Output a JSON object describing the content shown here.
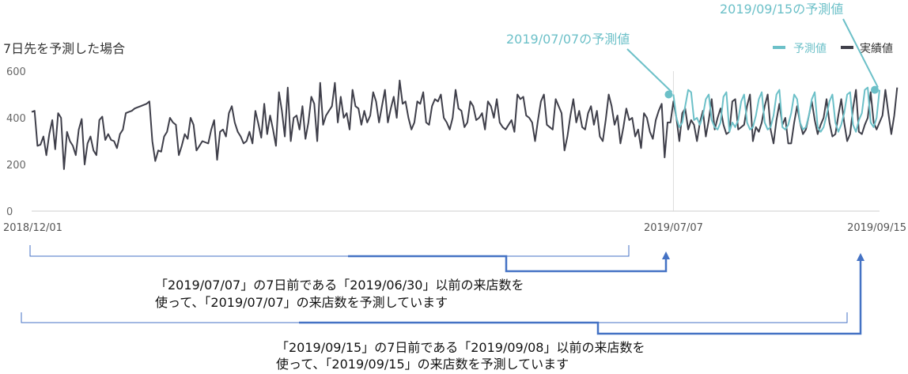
{
  "chart_data": {
    "type": "line",
    "title": "7日先を予測した場合",
    "xlabel": "",
    "ylabel": "",
    "ylim": [
      0,
      600
    ],
    "yticks": [
      "0",
      "200",
      "400",
      "600"
    ],
    "x_start": "2018/12/01",
    "x_end": "2019/09/15",
    "xticks": [
      {
        "date": "2018/12/01",
        "label": "2018/12/01"
      },
      {
        "date": "2019/07/07",
        "label": "2019/07/07"
      },
      {
        "date": "2019/09/15",
        "label": "2019/09/15"
      }
    ],
    "grid": "vertical line at 2019/07/07",
    "legend_position": "top-right",
    "series": [
      {
        "name": "実績値",
        "color": "#3f3f4a",
        "start_date": "2018/12/01",
        "values": [
          425,
          430,
          280,
          285,
          320,
          240,
          330,
          390,
          265,
          420,
          400,
          180,
          340,
          300,
          280,
          240,
          350,
          395,
          200,
          290,
          320,
          260,
          240,
          390,
          405,
          305,
          330,
          305,
          300,
          270,
          330,
          350,
          420,
          425,
          430,
          440,
          445,
          450,
          455,
          460,
          470,
          300,
          215,
          260,
          255,
          320,
          340,
          400,
          380,
          370,
          240,
          280,
          330,
          310,
          400,
          370,
          260,
          280,
          300,
          295,
          290,
          350,
          390,
          220,
          340,
          350,
          320,
          420,
          450,
          380,
          340,
          320,
          290,
          300,
          340,
          290,
          430,
          375,
          315,
          460,
          330,
          410,
          350,
          280,
          510,
          430,
          320,
          530,
          300,
          400,
          410,
          350,
          450,
          310,
          380,
          490,
          460,
          300,
          550,
          370,
          410,
          430,
          450,
          550,
          380,
          490,
          400,
          420,
          350,
          520,
          450,
          440,
          370,
          430,
          380,
          410,
          510,
          470,
          380,
          450,
          520,
          380,
          440,
          490,
          400,
          560,
          460,
          470,
          400,
          350,
          380,
          470,
          460,
          510,
          380,
          370,
          450,
          480,
          470,
          500,
          400,
          380,
          350,
          400,
          520,
          440,
          430,
          360,
          380,
          470,
          450,
          390,
          400,
          420,
          350,
          470,
          450,
          400,
          480,
          380,
          360,
          350,
          370,
          390,
          340,
          500,
          480,
          490,
          410,
          400,
          380,
          300,
          390,
          470,
          500,
          370,
          360,
          350,
          480,
          450,
          420,
          260,
          320,
          410,
          480,
          380,
          430,
          360,
          350,
          420,
          450,
          370,
          430,
          320,
          300,
          390,
          500,
          450,
          370,
          410,
          290,
          360,
          440,
          390,
          400,
          320,
          350,
          270,
          420,
          400,
          340,
          310,
          390,
          430,
          460,
          230,
          380,
          380,
          470,
          400,
          300,
          420,
          440,
          350,
          390,
          370,
          300,
          380,
          430,
          320,
          390,
          480,
          350,
          400,
          440,
          370,
          330,
          340,
          470,
          480,
          350,
          360,
          370,
          450,
          500,
          300,
          360,
          340,
          380,
          450,
          500,
          350,
          290,
          390,
          460,
          370,
          400,
          290,
          290,
          380,
          450,
          380,
          330,
          350,
          410,
          470,
          390,
          330,
          370,
          400,
          480,
          380,
          320,
          330,
          410,
          480,
          380,
          300,
          330,
          440,
          520,
          340,
          330,
          370,
          400,
          510,
          380,
          350,
          380,
          410,
          520,
          420,
          330,
          410,
          530
        ],
        "note": "daily values read off the chart, 2018/12/01 – 2019/09/15"
      },
      {
        "name": "予測値",
        "color": "#6cc0c8",
        "start_date": "2019/07/07",
        "values": [
          500,
          400,
          360,
          380,
          450,
          520,
          510,
          390,
          400,
          370,
          410,
          480,
          500,
          390,
          360,
          350,
          380,
          490,
          510,
          340,
          380,
          360,
          390,
          470,
          500,
          380,
          350,
          360,
          410,
          480,
          510,
          380,
          350,
          360,
          410,
          500,
          520,
          360,
          350,
          370,
          420,
          500,
          480,
          380,
          350,
          360,
          410,
          480,
          510,
          360,
          340,
          360,
          410,
          470,
          500,
          380,
          340,
          370,
          420,
          500,
          510,
          370,
          340,
          390,
          420,
          520,
          530,
          380,
          360,
          400,
          520
        ]
      }
    ],
    "annotations": [
      {
        "text": "2019/07/07の予測値",
        "date": "2019/07/07",
        "value": 500
      },
      {
        "text": "2019/09/15の予測値",
        "date": "2019/09/15",
        "value": 520
      }
    ],
    "brackets": [
      {
        "text_line1": "「2019/07/07」の7日前である「2019/06/30」以前の来店数を",
        "text_line2": "使って、「2019/07/07」の来店数を予測しています"
      },
      {
        "text_line1": "「2019/09/15」の7日前である「2019/09/08」以前の来店数を",
        "text_line2": "使って、「2019/09/15」の来店数を予測しています"
      }
    ]
  }
}
